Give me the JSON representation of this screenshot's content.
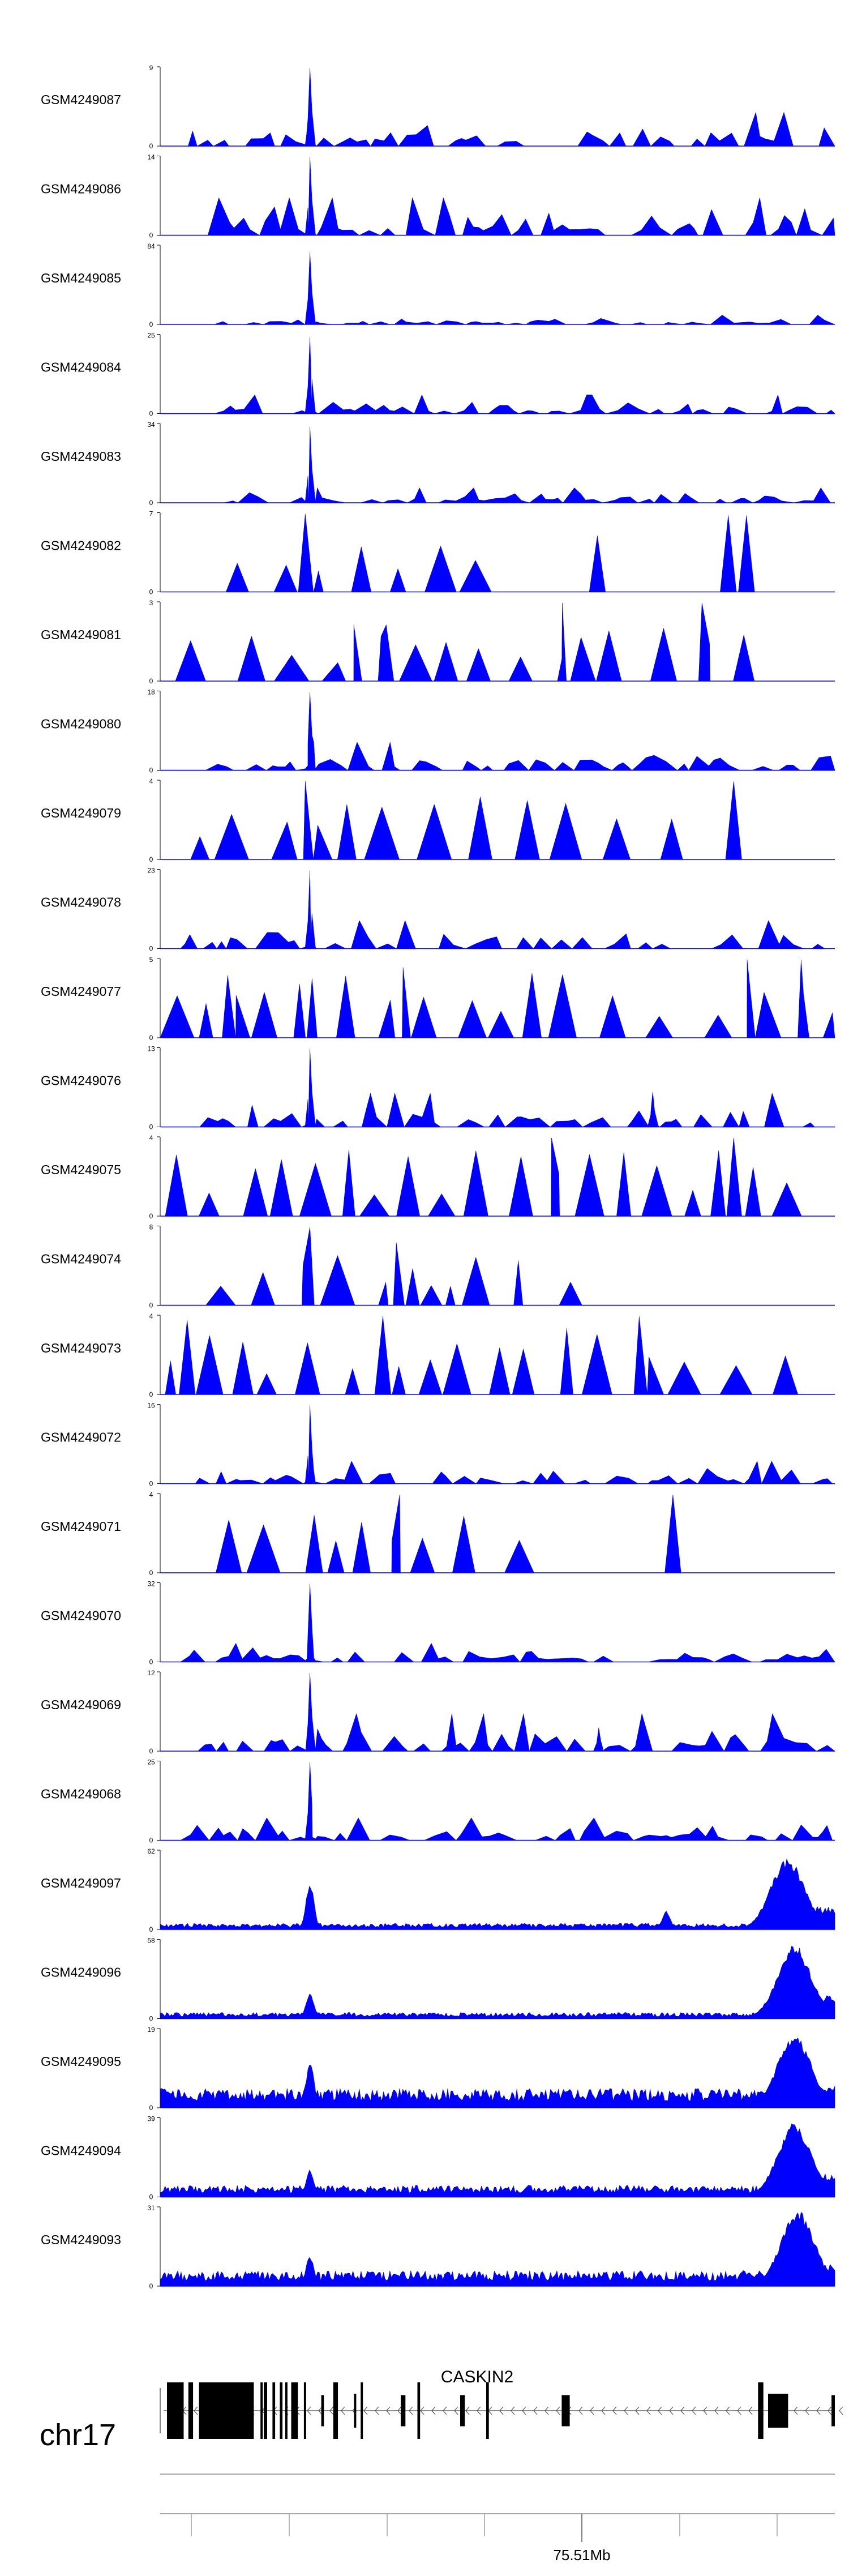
{
  "chart_data": {
    "type": "area",
    "chromosome": "chr17",
    "gene": "CASKIN2",
    "axis": {
      "ticks": [
        "",
        "",
        "",
        "",
        "75.51Mb",
        "",
        "",
        ""
      ]
    },
    "color": "#0000ff",
    "tracks": [
      {
        "name": "GSM4249087",
        "ymax": 9,
        "ymin": 0,
        "style": "spiky",
        "peaks": [
          [
            0.222,
            1.0
          ]
        ],
        "fill": 0.85,
        "level": 0.18
      },
      {
        "name": "GSM4249086",
        "ymax": 14,
        "ymin": 0,
        "style": "spiky",
        "peaks": [
          [
            0.222,
            1.0
          ]
        ],
        "fill": 0.75,
        "level": 0.2
      },
      {
        "name": "GSM4249085",
        "ymax": 84,
        "ymin": 0,
        "style": "spiky",
        "peaks": [
          [
            0.222,
            0.92
          ]
        ],
        "fill": 0.6,
        "level": 0.05
      },
      {
        "name": "GSM4249084",
        "ymax": 25,
        "ymin": 0,
        "style": "spiky",
        "peaks": [
          [
            0.222,
            0.98
          ]
        ],
        "fill": 0.6,
        "level": 0.1
      },
      {
        "name": "GSM4249083",
        "ymax": 34,
        "ymin": 0,
        "style": "spiky",
        "peaks": [
          [
            0.222,
            0.97
          ]
        ],
        "fill": 0.6,
        "level": 0.08
      },
      {
        "name": "GSM4249082",
        "ymax": 7,
        "ymin": 0,
        "style": "sparse",
        "peaks": [
          [
            0.215,
            1.0
          ],
          [
            0.648,
            0.72
          ],
          [
            0.842,
            0.98
          ],
          [
            0.869,
            0.98
          ]
        ],
        "fill": 0.35,
        "level": 0.35
      },
      {
        "name": "GSM4249081",
        "ymax": 3,
        "ymin": 0,
        "style": "sparse",
        "peaks": [
          [
            0.287,
            0.72
          ],
          [
            0.335,
            0.72
          ],
          [
            0.596,
            1.0
          ],
          [
            0.803,
            1.0
          ]
        ],
        "fill": 0.85,
        "level": 0.4
      },
      {
        "name": "GSM4249080",
        "ymax": 18,
        "ymin": 0,
        "style": "spiky",
        "peaks": [
          [
            0.222,
            1.0
          ]
        ],
        "fill": 0.75,
        "level": 0.15
      },
      {
        "name": "GSM4249079",
        "ymax": 4,
        "ymin": 0,
        "style": "sparse",
        "peaks": [
          [
            0.215,
            1.0
          ],
          [
            0.85,
            1.0
          ]
        ],
        "fill": 0.7,
        "level": 0.5
      },
      {
        "name": "GSM4249078",
        "ymax": 23,
        "ymin": 0,
        "style": "spiky",
        "peaks": [
          [
            0.222,
            1.0
          ]
        ],
        "fill": 0.85,
        "level": 0.15
      },
      {
        "name": "GSM4249077",
        "ymax": 5,
        "ymin": 0,
        "style": "sparse",
        "peaks": [
          [
            0.1,
            0.8
          ],
          [
            0.36,
            0.9
          ],
          [
            0.87,
            1.0
          ],
          [
            0.95,
            1.0
          ]
        ],
        "fill": 1.0,
        "level": 0.5
      },
      {
        "name": "GSM4249076",
        "ymax": 13,
        "ymin": 0,
        "style": "spiky",
        "peaks": [
          [
            0.222,
            1.0
          ],
          [
            0.73,
            0.45
          ]
        ],
        "fill": 0.75,
        "level": 0.18
      },
      {
        "name": "GSM4249075",
        "ymax": 4,
        "ymin": 0,
        "style": "sparse",
        "peaks": [
          [
            0.58,
            1.0
          ],
          [
            0.85,
            1.0
          ]
        ],
        "fill": 0.95,
        "level": 0.5
      },
      {
        "name": "GSM4249074",
        "ymax": 8,
        "ymin": 0,
        "style": "sparse",
        "peaks": [
          [
            0.222,
            1.0
          ],
          [
            0.35,
            0.8
          ]
        ],
        "fill": 0.55,
        "level": 0.4
      },
      {
        "name": "GSM4249073",
        "ymax": 4,
        "ymin": 0,
        "style": "sparse",
        "peaks": [
          [
            0.04,
            0.95
          ],
          [
            0.33,
            1.0
          ],
          [
            0.71,
            1.0
          ]
        ],
        "fill": 0.95,
        "level": 0.5
      },
      {
        "name": "GSM4249072",
        "ymax": 16,
        "ymin": 0,
        "style": "spiky",
        "peaks": [
          [
            0.222,
            1.0
          ]
        ],
        "fill": 0.8,
        "level": 0.12
      },
      {
        "name": "GSM4249071",
        "ymax": 4,
        "ymin": 0,
        "style": "sparse",
        "peaks": [
          [
            0.355,
            1.0
          ],
          [
            0.76,
            1.0
          ]
        ],
        "fill": 0.45,
        "level": 0.5
      },
      {
        "name": "GSM4249070",
        "ymax": 32,
        "ymin": 0,
        "style": "spiky",
        "peaks": [
          [
            0.222,
            1.0
          ]
        ],
        "fill": 0.85,
        "level": 0.1
      },
      {
        "name": "GSM4249069",
        "ymax": 12,
        "ymin": 0,
        "style": "spiky",
        "peaks": [
          [
            0.222,
            1.0
          ],
          [
            0.65,
            0.3
          ]
        ],
        "fill": 0.85,
        "level": 0.2
      },
      {
        "name": "GSM4249068",
        "ymax": 25,
        "ymin": 0,
        "style": "spiky",
        "peaks": [
          [
            0.222,
            1.0
          ]
        ],
        "fill": 0.85,
        "level": 0.12
      },
      {
        "name": "GSM4249097",
        "ymax": 62,
        "ymin": 0,
        "style": "dense",
        "peaks": [
          [
            0.222,
            0.6
          ],
          [
            0.93,
            0.92
          ],
          [
            0.75,
            0.25
          ]
        ],
        "fill": 1.0,
        "level": 0.08
      },
      {
        "name": "GSM4249096",
        "ymax": 58,
        "ymin": 0,
        "style": "dense",
        "peaks": [
          [
            0.222,
            0.32
          ],
          [
            0.94,
            0.95
          ]
        ],
        "fill": 1.0,
        "level": 0.08
      },
      {
        "name": "GSM4249095",
        "ymax": 19,
        "ymin": 0,
        "style": "dense",
        "peaks": [
          [
            0.222,
            0.6
          ],
          [
            0.94,
            0.95
          ]
        ],
        "fill": 1.0,
        "level": 0.25
      },
      {
        "name": "GSM4249094",
        "ymax": 39,
        "ymin": 0,
        "style": "dense",
        "peaks": [
          [
            0.222,
            0.35
          ],
          [
            0.94,
            0.95
          ]
        ],
        "fill": 1.0,
        "level": 0.15
      },
      {
        "name": "GSM4249093",
        "ymax": 31,
        "ymin": 0,
        "style": "dense",
        "peaks": [
          [
            0.222,
            0.4
          ],
          [
            0.945,
            0.98
          ]
        ],
        "fill": 1.0,
        "level": 0.2
      }
    ],
    "gene_model": {
      "strand": "-",
      "exons": [
        [
          0.0,
          0.025,
          1
        ],
        [
          0.032,
          0.039,
          1
        ],
        [
          0.048,
          0.13,
          1
        ],
        [
          0.14,
          0.142,
          1
        ],
        [
          0.145,
          0.15,
          1
        ],
        [
          0.158,
          0.162,
          1
        ],
        [
          0.169,
          0.173,
          1
        ],
        [
          0.177,
          0.18,
          1
        ],
        [
          0.186,
          0.196,
          1
        ],
        [
          0.205,
          0.206,
          1
        ],
        [
          0.231,
          0.235,
          0.55
        ],
        [
          0.249,
          0.256,
          1
        ],
        [
          0.28,
          0.282,
          0.6
        ],
        [
          0.29,
          0.293,
          1
        ],
        [
          0.35,
          0.357,
          0.55
        ],
        [
          0.375,
          0.379,
          1
        ],
        [
          0.439,
          0.446,
          0.55
        ],
        [
          0.478,
          0.482,
          1
        ],
        [
          0.591,
          0.603,
          0.55
        ],
        [
          0.885,
          0.893,
          1
        ],
        [
          0.9,
          0.93,
          0.6
        ],
        [
          0.995,
          1.0,
          0.55
        ]
      ]
    }
  }
}
